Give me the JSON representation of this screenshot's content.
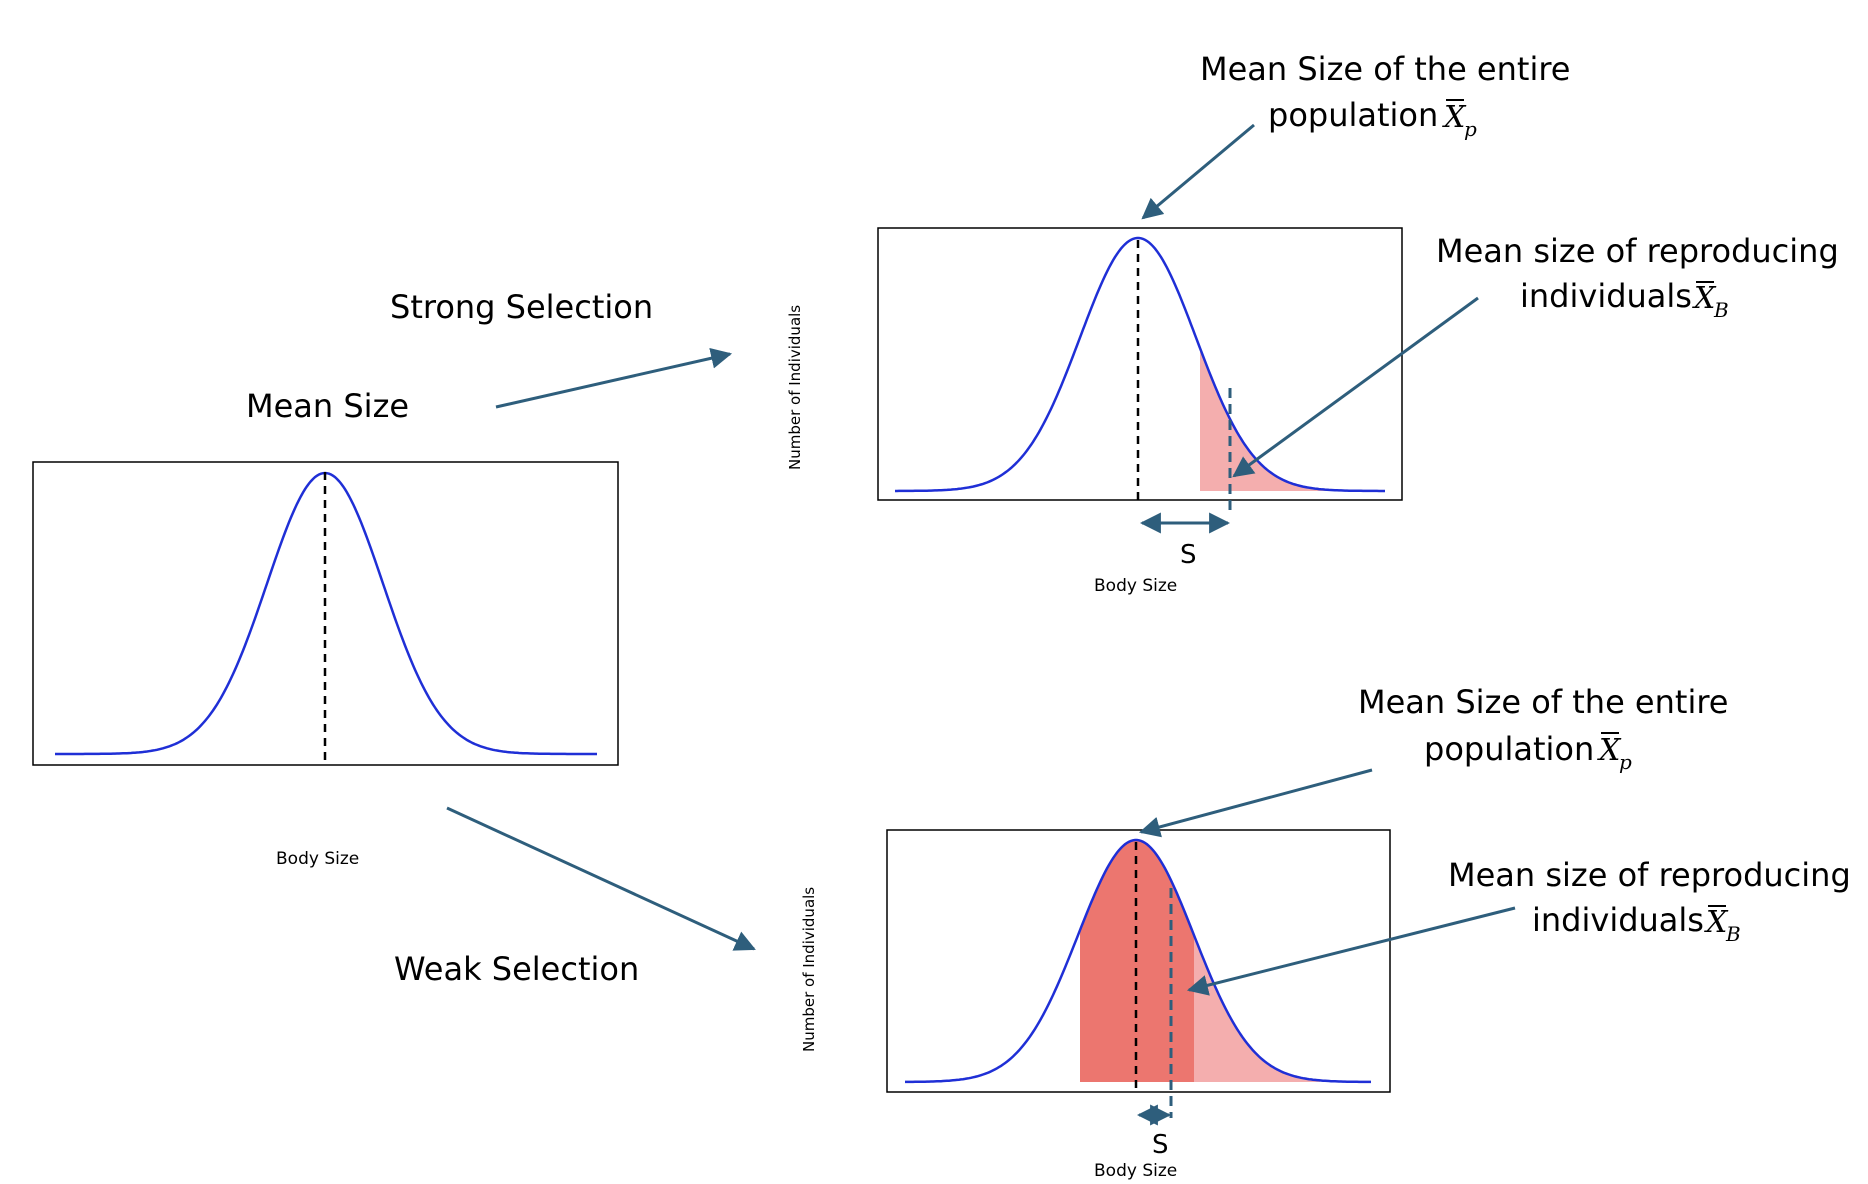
{
  "labels": {
    "mean_size": "Mean Size",
    "strong_selection": "Strong Selection",
    "weak_selection": "Weak Selection",
    "body_size": "Body Size",
    "number_of_individuals": "Number of Individuals",
    "s": "S",
    "pop_line1": "Mean Size of the entire",
    "pop_line2": "population",
    "rep_line1": "Mean size of reproducing",
    "rep_line2": "individuals",
    "x_symbol": "X",
    "pop_subscript": "p",
    "rep_subscript": "B"
  },
  "colors": {
    "curve": "#1f2fd6",
    "arrow": "#2e5e7c",
    "selected_light": "#f4aeae",
    "selected_dark": "#ec766f",
    "mean_line": "#000000"
  }
}
